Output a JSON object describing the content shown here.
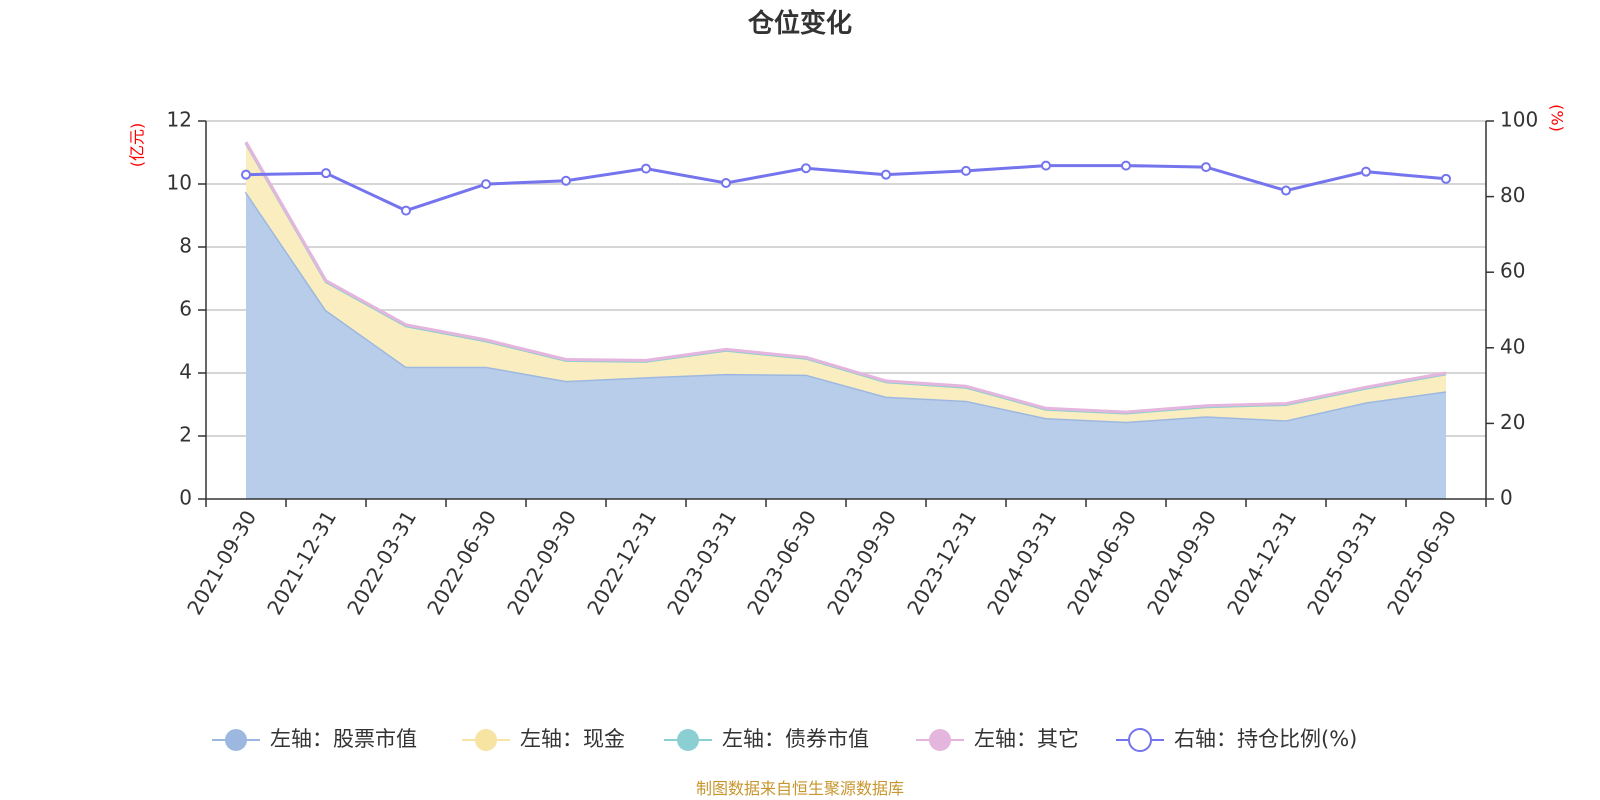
{
  "chart_data": {
    "type": "area",
    "title": "仓位变化",
    "left_axis_unit": "(亿元)",
    "right_axis_unit": "(%)",
    "x": [
      "2021-09-30",
      "2021-12-31",
      "2022-03-31",
      "2022-06-30",
      "2022-09-30",
      "2022-12-31",
      "2023-03-31",
      "2023-06-30",
      "2023-09-30",
      "2023-12-31",
      "2024-03-31",
      "2024-06-30",
      "2024-09-30",
      "2024-12-31",
      "2025-03-31",
      "2025-06-30"
    ],
    "left_axis": {
      "min": 0,
      "max": 12,
      "ticks": [
        0,
        2,
        4,
        6,
        8,
        10,
        12
      ]
    },
    "right_axis": {
      "min": 0,
      "max": 100,
      "ticks": [
        0,
        20,
        40,
        60,
        80,
        100
      ]
    },
    "grid": true,
    "legend_position": "bottom",
    "stacked": true,
    "series": [
      {
        "name": "左轴：股票市值",
        "axis": "left",
        "color": "#9db8e0",
        "fill": "#b8cdea",
        "values": [
          9.75,
          6.0,
          4.2,
          4.2,
          3.75,
          3.87,
          3.97,
          3.95,
          3.25,
          3.12,
          2.57,
          2.45,
          2.63,
          2.5,
          3.07,
          3.42
        ]
      },
      {
        "name": "左轴：现金",
        "axis": "left",
        "color": "#f7e4a2",
        "fill": "#faedbf",
        "values": [
          1.55,
          0.9,
          1.3,
          0.82,
          0.65,
          0.5,
          0.75,
          0.52,
          0.47,
          0.43,
          0.28,
          0.28,
          0.3,
          0.5,
          0.45,
          0.55
        ]
      },
      {
        "name": "左轴：债券市值",
        "axis": "left",
        "color": "#8ccfd3",
        "fill": "#a8dde0",
        "values": [
          0,
          0,
          0,
          0,
          0,
          0,
          0,
          0,
          0,
          0,
          0,
          0,
          0,
          0,
          0,
          0
        ]
      },
      {
        "name": "左轴：其它",
        "axis": "left",
        "color": "#e4b5dd",
        "fill": "#efd0ea",
        "values": [
          0.03,
          0.03,
          0.03,
          0.03,
          0.03,
          0.03,
          0.03,
          0.03,
          0.03,
          0.03,
          0.03,
          0.03,
          0.03,
          0.03,
          0.03,
          0.03
        ]
      },
      {
        "name": "右轴：持仓比例(%)",
        "axis": "right",
        "color": "#7474ee",
        "values": [
          85.8,
          86.2,
          76.3,
          83.3,
          84.2,
          87.4,
          83.6,
          87.5,
          85.8,
          86.8,
          88.2,
          88.2,
          87.8,
          81.6,
          86.6,
          84.7
        ]
      }
    ],
    "source": "制图数据来自恒生聚源数据库"
  }
}
